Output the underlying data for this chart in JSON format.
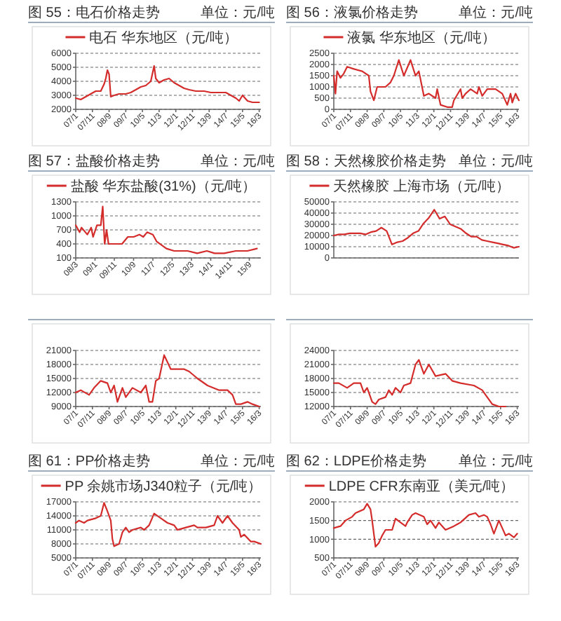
{
  "chart_data": [
    {
      "type": "line",
      "title": "图 55：电石价格走势",
      "subtitle": "单位：元/吨",
      "legend": "top",
      "grid": "y",
      "xlim": [
        "2007-01",
        "2016-04"
      ],
      "xticks": [
        {
          "value": "2007-01",
          "label": "07/1"
        },
        {
          "value": "2007-11",
          "label": "07/11"
        },
        {
          "value": "2008-09",
          "label": "08/9"
        },
        {
          "value": "2009-07",
          "label": "09/7"
        },
        {
          "value": "2010-05",
          "label": "10/5"
        },
        {
          "value": "2011-03",
          "label": "11/3"
        },
        {
          "value": "2012-01",
          "label": "12/1"
        },
        {
          "value": "2012-11",
          "label": "12/11"
        },
        {
          "value": "2013-09",
          "label": "13/9"
        },
        {
          "value": "2014-07",
          "label": "14/7"
        },
        {
          "value": "2015-05",
          "label": "15/5"
        },
        {
          "value": "2016-03",
          "label": "16/3"
        }
      ],
      "ylim": [
        2000,
        6000
      ],
      "yticks": [
        2000,
        3000,
        4000,
        5000,
        6000
      ],
      "series": [
        {
          "name": "电石 华东地区（元/吨）",
          "color": "#d42b2b",
          "x": [
            "2007-01",
            "2007-04",
            "2007-07",
            "2007-10",
            "2008-01",
            "2008-04",
            "2008-06",
            "2008-07",
            "2008-08",
            "2008-09",
            "2008-10",
            "2008-12",
            "2009-03",
            "2009-07",
            "2009-10",
            "2010-01",
            "2010-04",
            "2010-07",
            "2010-10",
            "2010-12",
            "2011-01",
            "2011-03",
            "2011-06",
            "2011-09",
            "2011-12",
            "2012-03",
            "2012-06",
            "2012-09",
            "2013-01",
            "2013-06",
            "2013-10",
            "2014-03",
            "2014-07",
            "2014-10",
            "2015-01",
            "2015-03",
            "2015-05",
            "2015-08",
            "2015-11",
            "2016-03"
          ],
          "values": [
            2800,
            2700,
            2900,
            3100,
            3300,
            3300,
            3800,
            4200,
            4800,
            4500,
            2900,
            3000,
            3100,
            3100,
            3200,
            3400,
            3600,
            3700,
            4000,
            5100,
            4200,
            3900,
            4100,
            4200,
            3900,
            3700,
            3500,
            3400,
            3300,
            3300,
            3200,
            3200,
            3200,
            3000,
            2800,
            2600,
            3000,
            2600,
            2500,
            2500
          ]
        }
      ]
    },
    {
      "type": "line",
      "title": "图 56：液氯价格走势",
      "subtitle": "单位：元/吨",
      "legend": "top",
      "grid": "y",
      "xlim": [
        "2007-01",
        "2016-04"
      ],
      "xticks": [
        {
          "value": "2007-01",
          "label": "07/1"
        },
        {
          "value": "2007-11",
          "label": "07/11"
        },
        {
          "value": "2008-09",
          "label": "08/9"
        },
        {
          "value": "2009-07",
          "label": "09/7"
        },
        {
          "value": "2010-05",
          "label": "10/5"
        },
        {
          "value": "2011-03",
          "label": "11/3"
        },
        {
          "value": "2012-01",
          "label": "12/1"
        },
        {
          "value": "2012-11",
          "label": "12/11"
        },
        {
          "value": "2013-09",
          "label": "13/9"
        },
        {
          "value": "2014-07",
          "label": "14/7"
        },
        {
          "value": "2015-05",
          "label": "15/5"
        },
        {
          "value": "2016-03",
          "label": "16/3"
        }
      ],
      "ylim": [
        0,
        2500
      ],
      "yticks": [
        0,
        500,
        1000,
        1500,
        2000,
        2500
      ],
      "series": [
        {
          "name": "液氯 华东地区（元/吨）",
          "color": "#d42b2b",
          "x": [
            "2007-01",
            "2007-02",
            "2007-03",
            "2007-05",
            "2007-07",
            "2007-09",
            "2008-01",
            "2008-06",
            "2008-10",
            "2008-11",
            "2009-01",
            "2009-03",
            "2009-08",
            "2009-11",
            "2010-01",
            "2010-04",
            "2010-07",
            "2010-11",
            "2011-02",
            "2011-04",
            "2011-07",
            "2011-10",
            "2012-02",
            "2012-03",
            "2012-05",
            "2012-09",
            "2012-12",
            "2013-01",
            "2013-05",
            "2013-06",
            "2013-08",
            "2013-11",
            "2014-03",
            "2014-04",
            "2014-06",
            "2014-09",
            "2015-02",
            "2015-06",
            "2015-09",
            "2015-11",
            "2015-12",
            "2016-02",
            "2016-04"
          ],
          "values": [
            1500,
            700,
            1700,
            1400,
            1600,
            1900,
            1800,
            1700,
            1500,
            800,
            400,
            1000,
            1000,
            1200,
            1500,
            2200,
            1500,
            2200,
            1500,
            1700,
            600,
            700,
            500,
            900,
            200,
            100,
            100,
            400,
            900,
            500,
            700,
            900,
            700,
            1000,
            600,
            900,
            900,
            700,
            200,
            700,
            300,
            700,
            400
          ]
        }
      ]
    },
    {
      "type": "line",
      "title": "图 57：盐酸价格走势",
      "subtitle": "单位：元/吨",
      "legend": "top",
      "grid": "y",
      "xlim": [
        "2008-03",
        "2016-03"
      ],
      "xticks": [
        {
          "value": "2008-03",
          "label": "08/3"
        },
        {
          "value": "2009-01",
          "label": "09/1"
        },
        {
          "value": "2009-11",
          "label": "09/11"
        },
        {
          "value": "2010-09",
          "label": "10/9"
        },
        {
          "value": "2011-07",
          "label": "11/7"
        },
        {
          "value": "2012-05",
          "label": "12/5"
        },
        {
          "value": "2013-03",
          "label": "13/3"
        },
        {
          "value": "2014-01",
          "label": "14/1"
        },
        {
          "value": "2014-11",
          "label": "14/11"
        },
        {
          "value": "2015-09",
          "label": "15/9"
        }
      ],
      "ylim": [
        100,
        1300
      ],
      "yticks": [
        100,
        400,
        700,
        1000,
        1300
      ],
      "series": [
        {
          "name": "盐酸 华东盐酸(31%)（元/吨）",
          "color": "#d42b2b",
          "x": [
            "2008-03",
            "2008-05",
            "2008-06",
            "2008-09",
            "2008-11",
            "2008-12",
            "2009-02",
            "2009-04",
            "2009-05",
            "2009-06",
            "2009-07",
            "2009-08",
            "2009-10",
            "2010-03",
            "2010-06",
            "2010-09",
            "2010-12",
            "2011-02",
            "2011-04",
            "2011-07",
            "2011-09",
            "2012-02",
            "2012-06",
            "2013-01",
            "2013-06",
            "2013-11",
            "2014-03",
            "2014-08",
            "2015-02",
            "2015-08",
            "2016-01"
          ],
          "values": [
            800,
            650,
            750,
            600,
            750,
            550,
            800,
            800,
            1200,
            400,
            700,
            400,
            400,
            400,
            550,
            550,
            600,
            550,
            650,
            600,
            450,
            300,
            250,
            250,
            200,
            250,
            200,
            200,
            250,
            250,
            300
          ]
        }
      ]
    },
    {
      "type": "line",
      "title": "图 58：天然橡胶价格走势",
      "subtitle": "单位：元/吨",
      "legend": "top",
      "grid": "y",
      "tick_labels": "y",
      "categories": [
        null,
        null,
        null,
        null,
        null,
        null,
        null,
        null,
        null,
        null,
        null,
        null,
        null,
        null,
        null,
        null,
        null,
        null,
        null,
        null,
        null,
        null,
        null,
        null,
        null,
        null,
        null,
        null,
        null,
        null,
        null,
        null,
        null,
        null,
        null,
        null
      ],
      "ylim": [
        0,
        50000
      ],
      "yticks": [
        0,
        10000,
        20000,
        30000,
        40000,
        50000
      ],
      "series": [
        {
          "name": "天然橡胶 上海市场（元/吨）",
          "color": "#d42b2b",
          "values": [
            20000,
            21000,
            21000,
            22000,
            22000,
            22000,
            21000,
            23000,
            24000,
            27000,
            24000,
            12000,
            14000,
            15000,
            18000,
            22000,
            24000,
            31000,
            36000,
            43000,
            35000,
            37000,
            30000,
            28000,
            26000,
            22000,
            19000,
            19000,
            16000,
            15000,
            14000,
            13000,
            12000,
            11000,
            9000,
            10000
          ]
        }
      ]
    },
    {
      "type": "line",
      "grid": "y",
      "xlim": [
        "2007-01",
        "2016-04"
      ],
      "xticks": [
        {
          "value": "2007-01",
          "label": "07/1"
        },
        {
          "value": "2007-11",
          "label": "07/11"
        },
        {
          "value": "2008-09",
          "label": "08/9"
        },
        {
          "value": "2009-07",
          "label": "09/7"
        },
        {
          "value": "2010-05",
          "label": "10/5"
        },
        {
          "value": "2011-03",
          "label": "11/3"
        },
        {
          "value": "2012-01",
          "label": "12/1"
        },
        {
          "value": "2012-11",
          "label": "12/11"
        },
        {
          "value": "2013-09",
          "label": "13/9"
        },
        {
          "value": "2014-07",
          "label": "14/7"
        },
        {
          "value": "2015-05",
          "label": "15/5"
        },
        {
          "value": "2016-03",
          "label": "16/3"
        }
      ],
      "ylim": [
        9000,
        21000
      ],
      "yticks": [
        9000,
        12000,
        15000,
        18000,
        21000
      ],
      "series": [
        {
          "color": "#d42b2b",
          "x": [
            "2007-01",
            "2007-04",
            "2007-09",
            "2007-12",
            "2008-04",
            "2008-08",
            "2008-10",
            "2008-12",
            "2009-02",
            "2009-05",
            "2009-07",
            "2009-11",
            "2010-04",
            "2010-07",
            "2010-09",
            "2010-11",
            "2011-01",
            "2011-03",
            "2011-06",
            "2011-10",
            "2012-06",
            "2012-09",
            "2013-02",
            "2013-08",
            "2014-03",
            "2014-08",
            "2014-11",
            "2015-01",
            "2015-04",
            "2015-08",
            "2015-11",
            "2016-03"
          ],
          "values": [
            12000,
            12500,
            11500,
            13000,
            14500,
            14000,
            12000,
            13500,
            10000,
            13000,
            11000,
            13000,
            12000,
            13500,
            10000,
            10000,
            14500,
            15000,
            20000,
            17000,
            17000,
            16500,
            15000,
            13500,
            12500,
            12500,
            11500,
            9500,
            9500,
            10000,
            9500,
            9000
          ]
        }
      ]
    },
    {
      "type": "line",
      "grid": "y",
      "xlim": [
        "2007-01",
        "2016-04"
      ],
      "xticks": [
        {
          "value": "2007-01",
          "label": "07/1"
        },
        {
          "value": "2007-11",
          "label": "07/11"
        },
        {
          "value": "2008-09",
          "label": "08/9"
        },
        {
          "value": "2009-07",
          "label": "09/7"
        },
        {
          "value": "2010-05",
          "label": "10/5"
        },
        {
          "value": "2011-03",
          "label": "11/3"
        },
        {
          "value": "2012-01",
          "label": "12/1"
        },
        {
          "value": "2012-11",
          "label": "12/11"
        },
        {
          "value": "2013-09",
          "label": "13/9"
        },
        {
          "value": "2014-07",
          "label": "14/7"
        },
        {
          "value": "2015-05",
          "label": "15/5"
        },
        {
          "value": "2016-03",
          "label": "16/3"
        }
      ],
      "ylim": [
        12000,
        24000
      ],
      "yticks": [
        12000,
        15000,
        18000,
        21000,
        24000
      ],
      "series": [
        {
          "color": "#d42b2b",
          "x": [
            "2007-01",
            "2007-04",
            "2007-09",
            "2008-01",
            "2008-05",
            "2008-07",
            "2008-09",
            "2008-12",
            "2009-02",
            "2009-04",
            "2009-08",
            "2009-10",
            "2009-12",
            "2010-02",
            "2010-05",
            "2010-07",
            "2010-11",
            "2011-02",
            "2011-04",
            "2011-07",
            "2011-10",
            "2012-02",
            "2012-08",
            "2012-12",
            "2013-05",
            "2014-01",
            "2014-06",
            "2014-08",
            "2014-12",
            "2015-04",
            "2015-08"
          ],
          "values": [
            17000,
            17000,
            16000,
            17000,
            17000,
            15000,
            16000,
            13000,
            12500,
            13500,
            14000,
            15500,
            14500,
            16000,
            15000,
            16500,
            17000,
            21000,
            22000,
            19000,
            21000,
            18500,
            19000,
            17500,
            17000,
            16500,
            15500,
            14500,
            12500,
            12000,
            12000
          ]
        }
      ]
    },
    {
      "type": "line",
      "title": "图 61：PP价格走势",
      "subtitle": "单位：元/吨",
      "legend": "top",
      "grid": "y",
      "xlim": [
        "2007-01",
        "2016-04"
      ],
      "xticks": [
        {
          "value": "2007-01",
          "label": "07/1"
        },
        {
          "value": "2007-11",
          "label": "07/11"
        },
        {
          "value": "2008-09",
          "label": "08/9"
        },
        {
          "value": "2009-07",
          "label": "09/7"
        },
        {
          "value": "2010-05",
          "label": "10/5"
        },
        {
          "value": "2011-03",
          "label": "11/3"
        },
        {
          "value": "2012-01",
          "label": "12/1"
        },
        {
          "value": "2012-11",
          "label": "12/11"
        },
        {
          "value": "2013-09",
          "label": "13/9"
        },
        {
          "value": "2014-07",
          "label": "14/7"
        },
        {
          "value": "2015-05",
          "label": "15/5"
        },
        {
          "value": "2016-03",
          "label": "16/3"
        }
      ],
      "ylim": [
        5000,
        17000
      ],
      "yticks": [
        5000,
        8000,
        11000,
        14000,
        17000
      ],
      "series": [
        {
          "name": "PP 余姚市场J340粒子（元/吨）",
          "color": "#d42b2b",
          "x": [
            "2007-01",
            "2007-03",
            "2007-06",
            "2007-08",
            "2008-01",
            "2008-04",
            "2008-06",
            "2008-08",
            "2008-10",
            "2008-11",
            "2008-12",
            "2009-03",
            "2009-05",
            "2009-07",
            "2009-09",
            "2009-11",
            "2010-04",
            "2010-06",
            "2010-09",
            "2010-12",
            "2011-04",
            "2011-08",
            "2011-12",
            "2012-02",
            "2012-07",
            "2012-12",
            "2013-02",
            "2013-07",
            "2013-12",
            "2014-02",
            "2014-05",
            "2014-08",
            "2014-11",
            "2015-03",
            "2015-04",
            "2015-06",
            "2015-10",
            "2015-12",
            "2016-04"
          ],
          "values": [
            12500,
            13000,
            12500,
            13000,
            13500,
            14000,
            16800,
            15000,
            13000,
            9000,
            7500,
            8000,
            10500,
            11500,
            10500,
            11000,
            11500,
            11000,
            12000,
            14500,
            13500,
            12500,
            12000,
            11000,
            11500,
            12000,
            11500,
            11500,
            12000,
            14000,
            12500,
            14000,
            12500,
            11000,
            9500,
            10000,
            8500,
            8500,
            8000
          ]
        }
      ]
    },
    {
      "type": "line",
      "title": "图 62：LDPE价格走势",
      "subtitle": "单位：元/吨",
      "legend": "top",
      "grid": "y",
      "xlim": [
        "2007-01",
        "2016-04"
      ],
      "xticks": [
        {
          "value": "2007-01",
          "label": "07/1"
        },
        {
          "value": "2007-11",
          "label": "07/11"
        },
        {
          "value": "2008-09",
          "label": "08/9"
        },
        {
          "value": "2009-07",
          "label": "09/7"
        },
        {
          "value": "2010-05",
          "label": "10/5"
        },
        {
          "value": "2011-03",
          "label": "11/3"
        },
        {
          "value": "2012-01",
          "label": "12/1"
        },
        {
          "value": "2012-11",
          "label": "12/11"
        },
        {
          "value": "2013-09",
          "label": "13/9"
        },
        {
          "value": "2014-07",
          "label": "14/7"
        },
        {
          "value": "2015-05",
          "label": "15/5"
        },
        {
          "value": "2016-03",
          "label": "16/3"
        }
      ],
      "ylim": [
        500,
        2000
      ],
      "yticks": [
        500,
        1000,
        1500,
        2000
      ],
      "series": [
        {
          "name": "LDPE CFR东南亚（美元/吨）",
          "color": "#d42b2b",
          "x": [
            "2007-01",
            "2007-05",
            "2007-08",
            "2007-12",
            "2008-02",
            "2008-07",
            "2008-09",
            "2008-11",
            "2008-12",
            "2009-02",
            "2009-04",
            "2009-06",
            "2009-08",
            "2009-12",
            "2010-02",
            "2010-05",
            "2010-08",
            "2010-09",
            "2010-12",
            "2011-02",
            "2011-07",
            "2011-09",
            "2011-11",
            "2012-02",
            "2012-04",
            "2012-06",
            "2012-08",
            "2013-01",
            "2013-03",
            "2013-05",
            "2013-10",
            "2014-02",
            "2014-04",
            "2014-07",
            "2014-09",
            "2014-11",
            "2015-01",
            "2015-04",
            "2015-06",
            "2015-08",
            "2015-10",
            "2016-01",
            "2016-03"
          ],
          "values": [
            1300,
            1350,
            1500,
            1600,
            1700,
            1800,
            1950,
            1800,
            1500,
            800,
            900,
            1100,
            1250,
            1250,
            1550,
            1450,
            1350,
            1450,
            1650,
            1700,
            1600,
            1400,
            1500,
            1300,
            1450,
            1350,
            1250,
            1350,
            1400,
            1450,
            1650,
            1700,
            1600,
            1650,
            1600,
            1400,
            1150,
            1500,
            1300,
            1100,
            1150,
            1050,
            1150
          ]
        }
      ]
    }
  ]
}
